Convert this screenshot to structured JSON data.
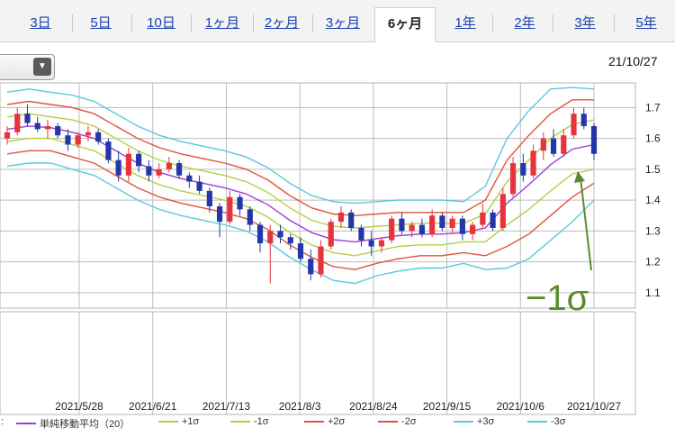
{
  "tabs": [
    {
      "label": "3日",
      "active": false
    },
    {
      "label": "5日",
      "active": false
    },
    {
      "label": "10日",
      "active": false
    },
    {
      "label": "1ヶ月",
      "active": false
    },
    {
      "label": "2ヶ月",
      "active": false
    },
    {
      "label": "3ヶ月",
      "active": false
    },
    {
      "label": "6ヶ月",
      "active": true
    },
    {
      "label": "1年",
      "active": false
    },
    {
      "label": "2年",
      "active": false
    },
    {
      "label": "3年",
      "active": false
    },
    {
      "label": "5年",
      "active": false
    }
  ],
  "dropdown": {
    "icon": "chevron-down-icon",
    "glyph": "▼"
  },
  "latest_date": "21/10/27",
  "legend_prefix": ":",
  "legend": [
    {
      "label": "単純移動平均（20）",
      "color": "#9a3fd0"
    },
    {
      "label": "+1σ",
      "color": "#b5cf45"
    },
    {
      "label": "-1σ",
      "color": "#b5cf45"
    },
    {
      "label": "+2σ",
      "color": "#e0533c"
    },
    {
      "label": "-2σ",
      "color": "#e0533c"
    },
    {
      "label": "+3σ",
      "color": "#5cc8dc"
    },
    {
      "label": "-3σ",
      "color": "#5cc8dc"
    }
  ],
  "annotation": {
    "text": "−1σ",
    "color": "#5d8a2e"
  },
  "chart_data": {
    "type": "candlestick",
    "x_ticks": [
      "2021/5/28",
      "2021/6/21",
      "2021/7/13",
      "2021/8/3",
      "2021/8/24",
      "2021/9/15",
      "2021/10/6",
      "2021/10/27"
    ],
    "y_ticks": [
      1.1,
      1.2,
      1.3,
      1.4,
      1.5,
      1.6,
      1.7
    ],
    "ylim": [
      1.05,
      1.78
    ],
    "colors": {
      "up": "#e8333c",
      "down": "#2536a8",
      "grid": "#bdbdbd"
    },
    "series": [
      {
        "name": "単純移動平均（20）",
        "color": "#9a3fd0",
        "values": [
          1.63,
          1.64,
          1.635,
          1.62,
          1.6,
          1.56,
          1.52,
          1.49,
          1.47,
          1.455,
          1.44,
          1.42,
          1.385,
          1.335,
          1.295,
          1.272,
          1.265,
          1.275,
          1.285,
          1.29,
          1.29,
          1.295,
          1.31,
          1.39,
          1.45,
          1.515,
          1.565,
          1.58
        ]
      },
      {
        "name": "+1σ",
        "color": "#b5cf45",
        "values": [
          1.67,
          1.68,
          1.67,
          1.66,
          1.64,
          1.6,
          1.56,
          1.53,
          1.51,
          1.495,
          1.48,
          1.46,
          1.425,
          1.375,
          1.335,
          1.315,
          1.31,
          1.315,
          1.32,
          1.325,
          1.325,
          1.325,
          1.355,
          1.46,
          1.53,
          1.6,
          1.645,
          1.66
        ]
      },
      {
        "name": "-1σ",
        "color": "#b5cf45",
        "values": [
          1.59,
          1.6,
          1.6,
          1.58,
          1.56,
          1.52,
          1.48,
          1.45,
          1.43,
          1.415,
          1.4,
          1.38,
          1.345,
          1.295,
          1.255,
          1.23,
          1.22,
          1.235,
          1.25,
          1.255,
          1.255,
          1.265,
          1.265,
          1.32,
          1.37,
          1.43,
          1.485,
          1.5
        ]
      },
      {
        "name": "+2σ",
        "color": "#e0533c",
        "values": [
          1.71,
          1.72,
          1.71,
          1.7,
          1.68,
          1.64,
          1.6,
          1.57,
          1.55,
          1.535,
          1.52,
          1.5,
          1.465,
          1.415,
          1.375,
          1.355,
          1.35,
          1.355,
          1.36,
          1.36,
          1.36,
          1.36,
          1.4,
          1.53,
          1.61,
          1.68,
          1.725,
          1.725
        ]
      },
      {
        "name": "-2σ",
        "color": "#e0533c",
        "values": [
          1.55,
          1.56,
          1.56,
          1.54,
          1.52,
          1.48,
          1.44,
          1.41,
          1.39,
          1.375,
          1.36,
          1.34,
          1.305,
          1.255,
          1.215,
          1.185,
          1.175,
          1.195,
          1.21,
          1.22,
          1.22,
          1.23,
          1.22,
          1.25,
          1.29,
          1.35,
          1.41,
          1.455
        ]
      },
      {
        "name": "+3σ",
        "color": "#5cc8dc",
        "values": [
          1.75,
          1.76,
          1.75,
          1.74,
          1.72,
          1.68,
          1.64,
          1.61,
          1.59,
          1.575,
          1.56,
          1.54,
          1.505,
          1.455,
          1.415,
          1.395,
          1.39,
          1.395,
          1.4,
          1.4,
          1.4,
          1.395,
          1.445,
          1.6,
          1.69,
          1.76,
          1.765,
          1.76
        ]
      },
      {
        "name": "-3σ",
        "color": "#5cc8dc",
        "values": [
          1.51,
          1.52,
          1.52,
          1.5,
          1.48,
          1.44,
          1.4,
          1.37,
          1.35,
          1.335,
          1.32,
          1.3,
          1.265,
          1.215,
          1.175,
          1.14,
          1.13,
          1.155,
          1.17,
          1.18,
          1.18,
          1.195,
          1.175,
          1.18,
          1.21,
          1.27,
          1.33,
          1.4
        ]
      }
    ],
    "candles": [
      {
        "o": 1.6,
        "h": 1.64,
        "l": 1.58,
        "c": 1.62
      },
      {
        "o": 1.62,
        "h": 1.7,
        "l": 1.61,
        "c": 1.68
      },
      {
        "o": 1.68,
        "h": 1.71,
        "l": 1.64,
        "c": 1.65
      },
      {
        "o": 1.65,
        "h": 1.67,
        "l": 1.62,
        "c": 1.63
      },
      {
        "o": 1.63,
        "h": 1.66,
        "l": 1.6,
        "c": 1.64
      },
      {
        "o": 1.64,
        "h": 1.65,
        "l": 1.6,
        "c": 1.61
      },
      {
        "o": 1.61,
        "h": 1.63,
        "l": 1.56,
        "c": 1.58
      },
      {
        "o": 1.58,
        "h": 1.62,
        "l": 1.57,
        "c": 1.61
      },
      {
        "o": 1.61,
        "h": 1.64,
        "l": 1.59,
        "c": 1.62
      },
      {
        "o": 1.62,
        "h": 1.63,
        "l": 1.58,
        "c": 1.59
      },
      {
        "o": 1.59,
        "h": 1.6,
        "l": 1.52,
        "c": 1.53
      },
      {
        "o": 1.53,
        "h": 1.56,
        "l": 1.46,
        "c": 1.48
      },
      {
        "o": 1.48,
        "h": 1.57,
        "l": 1.46,
        "c": 1.55
      },
      {
        "o": 1.55,
        "h": 1.56,
        "l": 1.49,
        "c": 1.51
      },
      {
        "o": 1.51,
        "h": 1.53,
        "l": 1.46,
        "c": 1.48
      },
      {
        "o": 1.48,
        "h": 1.52,
        "l": 1.47,
        "c": 1.5
      },
      {
        "o": 1.5,
        "h": 1.54,
        "l": 1.49,
        "c": 1.52
      },
      {
        "o": 1.52,
        "h": 1.53,
        "l": 1.47,
        "c": 1.48
      },
      {
        "o": 1.48,
        "h": 1.49,
        "l": 1.44,
        "c": 1.46
      },
      {
        "o": 1.46,
        "h": 1.48,
        "l": 1.42,
        "c": 1.43
      },
      {
        "o": 1.43,
        "h": 1.44,
        "l": 1.36,
        "c": 1.38
      },
      {
        "o": 1.38,
        "h": 1.39,
        "l": 1.28,
        "c": 1.33
      },
      {
        "o": 1.33,
        "h": 1.43,
        "l": 1.32,
        "c": 1.41
      },
      {
        "o": 1.41,
        "h": 1.42,
        "l": 1.35,
        "c": 1.37
      },
      {
        "o": 1.37,
        "h": 1.38,
        "l": 1.3,
        "c": 1.32
      },
      {
        "o": 1.32,
        "h": 1.33,
        "l": 1.23,
        "c": 1.26
      },
      {
        "o": 1.26,
        "h": 1.32,
        "l": 1.13,
        "c": 1.3
      },
      {
        "o": 1.3,
        "h": 1.32,
        "l": 1.26,
        "c": 1.28
      },
      {
        "o": 1.28,
        "h": 1.29,
        "l": 1.24,
        "c": 1.26
      },
      {
        "o": 1.26,
        "h": 1.28,
        "l": 1.2,
        "c": 1.21
      },
      {
        "o": 1.21,
        "h": 1.24,
        "l": 1.14,
        "c": 1.16
      },
      {
        "o": 1.16,
        "h": 1.27,
        "l": 1.15,
        "c": 1.25
      },
      {
        "o": 1.25,
        "h": 1.34,
        "l": 1.24,
        "c": 1.33
      },
      {
        "o": 1.33,
        "h": 1.38,
        "l": 1.31,
        "c": 1.36
      },
      {
        "o": 1.36,
        "h": 1.37,
        "l": 1.3,
        "c": 1.31
      },
      {
        "o": 1.31,
        "h": 1.32,
        "l": 1.25,
        "c": 1.27
      },
      {
        "o": 1.27,
        "h": 1.3,
        "l": 1.22,
        "c": 1.25
      },
      {
        "o": 1.25,
        "h": 1.28,
        "l": 1.23,
        "c": 1.27
      },
      {
        "o": 1.27,
        "h": 1.35,
        "l": 1.26,
        "c": 1.34
      },
      {
        "o": 1.34,
        "h": 1.36,
        "l": 1.29,
        "c": 1.3
      },
      {
        "o": 1.3,
        "h": 1.33,
        "l": 1.28,
        "c": 1.32
      },
      {
        "o": 1.32,
        "h": 1.34,
        "l": 1.28,
        "c": 1.29
      },
      {
        "o": 1.29,
        "h": 1.37,
        "l": 1.28,
        "c": 1.35
      },
      {
        "o": 1.35,
        "h": 1.36,
        "l": 1.3,
        "c": 1.31
      },
      {
        "o": 1.31,
        "h": 1.35,
        "l": 1.29,
        "c": 1.34
      },
      {
        "o": 1.34,
        "h": 1.35,
        "l": 1.27,
        "c": 1.29
      },
      {
        "o": 1.29,
        "h": 1.33,
        "l": 1.27,
        "c": 1.32
      },
      {
        "o": 1.32,
        "h": 1.39,
        "l": 1.31,
        "c": 1.36
      },
      {
        "o": 1.36,
        "h": 1.37,
        "l": 1.3,
        "c": 1.31
      },
      {
        "o": 1.31,
        "h": 1.44,
        "l": 1.3,
        "c": 1.42
      },
      {
        "o": 1.42,
        "h": 1.54,
        "l": 1.41,
        "c": 1.52
      },
      {
        "o": 1.52,
        "h": 1.55,
        "l": 1.46,
        "c": 1.48
      },
      {
        "o": 1.48,
        "h": 1.58,
        "l": 1.47,
        "c": 1.56
      },
      {
        "o": 1.56,
        "h": 1.62,
        "l": 1.53,
        "c": 1.6
      },
      {
        "o": 1.6,
        "h": 1.63,
        "l": 1.54,
        "c": 1.55
      },
      {
        "o": 1.55,
        "h": 1.63,
        "l": 1.54,
        "c": 1.61
      },
      {
        "o": 1.61,
        "h": 1.7,
        "l": 1.6,
        "c": 1.68
      },
      {
        "o": 1.68,
        "h": 1.7,
        "l": 1.63,
        "c": 1.64
      },
      {
        "o": 1.64,
        "h": 1.65,
        "l": 1.53,
        "c": 1.55
      }
    ]
  }
}
